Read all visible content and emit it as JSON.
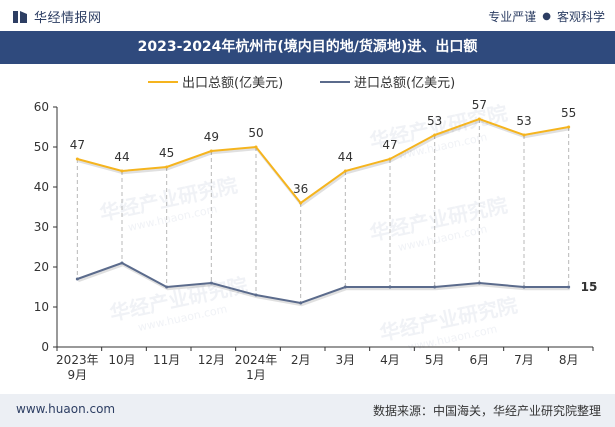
{
  "header": {
    "brand_name": "华经情报网",
    "tagline_left": "专业严谨",
    "tagline_right": "客观科学"
  },
  "watermark": {
    "text_cn": "华经产业研究院",
    "text_en": "www.huaon.com"
  },
  "footer": {
    "site": "www.huaon.com",
    "source": "数据来源：中国海关，华经产业研究院整理"
  },
  "colors": {
    "export": "#f5b41e",
    "import": "#5b6b8c",
    "title_bg": "#2f4a7d"
  },
  "chart_data": {
    "type": "line",
    "title": "2023-2024年杭州市(境内目的地/货源地)进、出口额",
    "categories": [
      [
        "2023年",
        "9月"
      ],
      [
        "10月"
      ],
      [
        "11月"
      ],
      [
        "12月"
      ],
      [
        "2024年",
        "1月"
      ],
      [
        "2月"
      ],
      [
        "3月"
      ],
      [
        "4月"
      ],
      [
        "5月"
      ],
      [
        "6月"
      ],
      [
        "7月"
      ],
      [
        "8月"
      ]
    ],
    "ylim": [
      0,
      60
    ],
    "yticks": [
      0,
      10,
      20,
      30,
      40,
      50,
      60
    ],
    "legend_position": "top",
    "grid": false,
    "series": [
      {
        "name": "出口总额(亿美元)",
        "values": [
          47,
          44,
          45,
          49,
          50,
          36,
          44,
          47,
          53,
          57,
          53,
          55
        ],
        "color": "#f5b41e",
        "labels": "all"
      },
      {
        "name": "进口总额(亿美元)",
        "values": [
          17,
          21,
          15,
          16,
          13,
          11,
          15,
          15,
          15,
          16,
          15,
          15
        ],
        "color": "#5b6b8c",
        "labels": "last"
      }
    ]
  }
}
